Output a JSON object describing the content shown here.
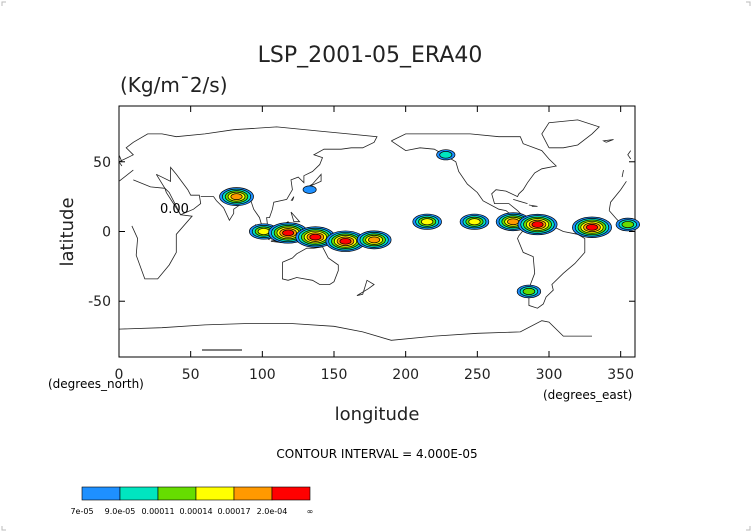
{
  "chart_data": {
    "type": "contour",
    "title": "LSP_2001-05_ERA40",
    "units": "(Kg/m¯2/s)",
    "xlabel": "longitude",
    "ylabel": "latitude",
    "x_ticks": [
      0,
      50,
      100,
      150,
      200,
      250,
      300,
      350
    ],
    "y_ticks": [
      50,
      0,
      -50
    ],
    "xlim": [
      0,
      360
    ],
    "ylim": [
      -90,
      90
    ],
    "x_axis_note": "(degrees_east)",
    "y_axis_note": "(degrees_north)",
    "contour_label": "0.00",
    "contour_interval_text": "CONTOUR INTERVAL = 4.000E-05",
    "colorbar": {
      "colors": [
        "#1e90ff",
        "#00e5c0",
        "#66dd00",
        "#ffff00",
        "#ff9900",
        "#ff0000"
      ],
      "labels": [
        "7e-05",
        "9.0e-05",
        "0.00011",
        "0.00014",
        "0.00017",
        "2.0e-04",
        "∞"
      ]
    },
    "features": [
      {
        "lon": 82,
        "lat": 25,
        "level": 5,
        "name": "bay-of-bengal"
      },
      {
        "lon": 101,
        "lat": 0,
        "level": 4,
        "name": "sumatra"
      },
      {
        "lon": 118,
        "lat": -1,
        "level": 6,
        "name": "borneo"
      },
      {
        "lon": 137,
        "lat": -4,
        "level": 6,
        "name": "new-guinea"
      },
      {
        "lon": 158,
        "lat": -7,
        "level": 6,
        "name": "solomon"
      },
      {
        "lon": 178,
        "lat": -6,
        "level": 5,
        "name": "pacific-west"
      },
      {
        "lon": 215,
        "lat": 7,
        "level": 4,
        "name": "itcz-central"
      },
      {
        "lon": 248,
        "lat": 7,
        "level": 4,
        "name": "itcz-east"
      },
      {
        "lon": 275,
        "lat": 7,
        "level": 5,
        "name": "panama"
      },
      {
        "lon": 292,
        "lat": 5,
        "level": 6,
        "name": "colombia"
      },
      {
        "lon": 330,
        "lat": 3,
        "level": 6,
        "name": "atlantic-itcz"
      },
      {
        "lon": 355,
        "lat": 5,
        "level": 3,
        "name": "gulf-of-guinea"
      },
      {
        "lon": 286,
        "lat": -43,
        "level": 3,
        "name": "chile-south"
      },
      {
        "lon": 228,
        "lat": 55,
        "level": 2,
        "name": "alaska-gulf"
      },
      {
        "lon": 133,
        "lat": 30,
        "level": 1,
        "name": "japan-band"
      }
    ]
  }
}
